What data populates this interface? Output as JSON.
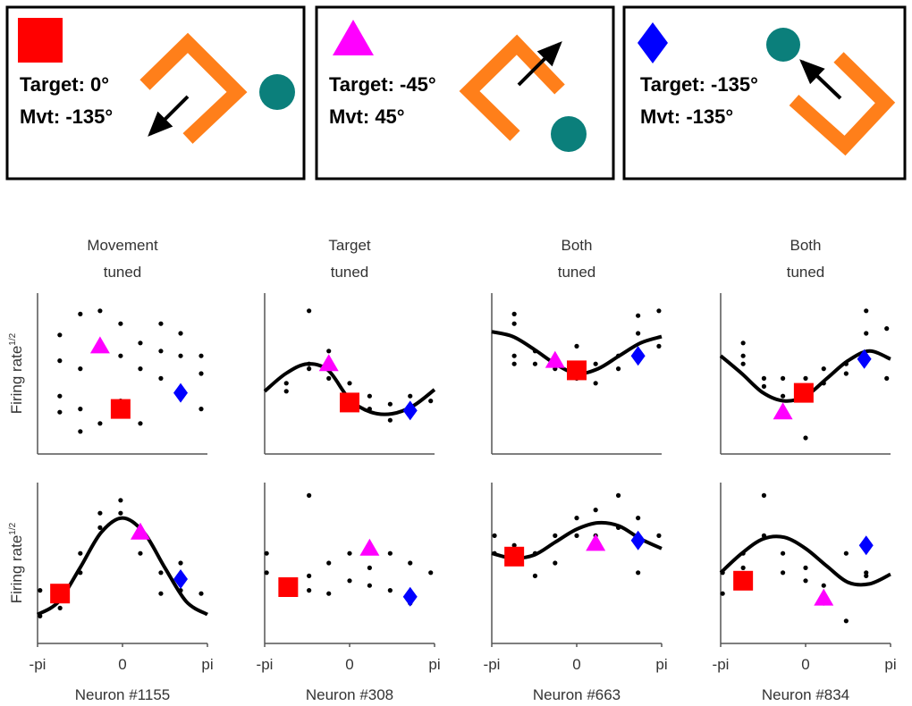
{
  "panels": [
    {
      "lines": [
        "Target: 0°",
        "Mvt: -135°"
      ]
    },
    {
      "lines": [
        "Target: -45°",
        "Mvt: 45°"
      ]
    },
    {
      "lines": [
        "Target: -135°",
        "Mvt: -135°"
      ]
    }
  ],
  "chart_data": [
    {
      "type": "scatter",
      "title": [
        "Movement",
        "tuned"
      ],
      "y_label": "Firing rate",
      "y_label_sup": "1/2",
      "xlim": [
        -3.14159,
        3.14159
      ],
      "ylim": [
        0,
        10
      ],
      "dots": {
        "color": "#000000",
        "x": [
          -2.32,
          -2.32,
          -2.32,
          -2.32,
          -1.56,
          -1.56,
          -1.56,
          -1.56,
          -0.83,
          -0.83,
          -0.83,
          -0.07,
          -0.07,
          -0.07,
          0.66,
          0.66,
          0.66,
          1.42,
          1.42,
          1.42,
          2.15,
          2.15,
          2.91,
          2.91,
          2.91
        ],
        "y": [
          7.4,
          5.8,
          3.6,
          2.6,
          8.7,
          5.3,
          2.8,
          1.4,
          8.9,
          6.7,
          1.9,
          8.1,
          6.1,
          3.3,
          6.9,
          5.3,
          1.9,
          8.1,
          6.4,
          4.7,
          7.5,
          6.1,
          6.1,
          5.0,
          2.8
        ]
      },
      "markers": [
        {
          "shape": "triangle",
          "color": "#ff00ff",
          "x": -0.83,
          "y": 6.7
        },
        {
          "shape": "square",
          "color": "#ff0000",
          "x": -0.07,
          "y": 2.8
        },
        {
          "shape": "diamond",
          "color": "#0000ff",
          "x": 2.15,
          "y": 3.8
        }
      ]
    },
    {
      "type": "scatter",
      "title": [
        "Target",
        "tuned"
      ],
      "xlim": [
        -3.14159,
        3.14159
      ],
      "ylim": [
        0,
        10
      ],
      "dots": {
        "color": "#000000",
        "x": [
          -2.34,
          -2.34,
          -1.5,
          -1.5,
          -1.5,
          -0.77,
          -0.77,
          0,
          0,
          0.74,
          0.74,
          1.5,
          1.5,
          2.24,
          2.24,
          3.0
        ],
        "y": [
          4.4,
          3.9,
          8.9,
          5.6,
          5.3,
          6.4,
          4.7,
          4.4,
          3.6,
          3.6,
          2.8,
          3.1,
          2.1,
          3.6,
          2.5,
          3.3
        ]
      },
      "curve": {
        "color": "#000000",
        "x": [
          -3.14,
          -2.36,
          -1.57,
          -0.79,
          0,
          0.79,
          1.57,
          2.36,
          3.14
        ],
        "y": [
          3.9,
          5.0,
          5.6,
          5.2,
          3.4,
          2.6,
          2.5,
          3.0,
          4.0
        ]
      },
      "markers": [
        {
          "shape": "triangle",
          "color": "#ff00ff",
          "x": -0.77,
          "y": 5.6
        },
        {
          "shape": "square",
          "color": "#ff0000",
          "x": 0,
          "y": 3.2
        },
        {
          "shape": "diamond",
          "color": "#0000ff",
          "x": 2.24,
          "y": 2.7
        }
      ]
    },
    {
      "type": "scatter",
      "title": [
        "Both",
        "tuned"
      ],
      "xlim": [
        -3.14159,
        3.14159
      ],
      "ylim": [
        0,
        10
      ],
      "dots": {
        "color": "#000000",
        "x": [
          -2.31,
          -2.31,
          -2.31,
          -2.31,
          -1.54,
          -1.54,
          -0.8,
          -0.8,
          0,
          0,
          0.7,
          0.7,
          1.54,
          1.54,
          2.27,
          2.27,
          3.04,
          3.04
        ],
        "y": [
          8.7,
          8.1,
          6.1,
          5.6,
          6.4,
          5.6,
          6.1,
          5.3,
          6.7,
          4.7,
          5.6,
          4.4,
          6.1,
          5.3,
          8.6,
          7.5,
          8.9,
          6.7
        ]
      },
      "curve": {
        "color": "#000000",
        "x": [
          -3.14,
          -2.36,
          -1.57,
          -0.79,
          0,
          0.79,
          1.57,
          2.36,
          3.14
        ],
        "y": [
          7.6,
          7.3,
          6.5,
          5.6,
          5.0,
          5.3,
          6.1,
          6.9,
          7.3
        ]
      },
      "markers": [
        {
          "shape": "triangle",
          "color": "#ff00ff",
          "x": -0.8,
          "y": 5.8
        },
        {
          "shape": "square",
          "color": "#ff0000",
          "x": 0,
          "y": 5.2
        },
        {
          "shape": "diamond",
          "color": "#0000ff",
          "x": 2.27,
          "y": 6.1
        }
      ]
    },
    {
      "type": "scatter",
      "title": [
        "Both",
        "tuned"
      ],
      "xlim": [
        -3.14159,
        3.14159
      ],
      "ylim": [
        0,
        10
      ],
      "dots": {
        "color": "#000000",
        "x": [
          -2.31,
          -2.31,
          -2.31,
          -1.54,
          -1.54,
          -0.84,
          -0.84,
          0,
          0,
          0.67,
          0.67,
          1.5,
          1.5,
          2.24,
          2.24,
          3.0,
          3.0
        ],
        "y": [
          6.9,
          6.1,
          5.6,
          4.7,
          4.2,
          4.7,
          3.6,
          4.7,
          1.0,
          5.3,
          4.4,
          5.6,
          5.0,
          8.9,
          7.5,
          7.8,
          4.7
        ]
      },
      "curve": {
        "color": "#000000",
        "x": [
          -3.14,
          -2.36,
          -1.57,
          -0.79,
          0,
          0.79,
          1.57,
          2.36,
          3.14
        ],
        "y": [
          6.1,
          5.0,
          3.8,
          3.3,
          3.6,
          4.7,
          5.8,
          6.4,
          5.9
        ]
      },
      "markers": [
        {
          "shape": "triangle",
          "color": "#ff00ff",
          "x": -0.84,
          "y": 2.6
        },
        {
          "shape": "square",
          "color": "#ff0000",
          "x": -0.07,
          "y": 3.8
        },
        {
          "shape": "diamond",
          "color": "#0000ff",
          "x": 2.17,
          "y": 5.9
        }
      ]
    },
    {
      "type": "scatter",
      "x_label": "Neuron #1155",
      "y_label": "Firing rate",
      "y_label_sup": "1/2",
      "xlim": [
        -3.14159,
        3.14159
      ],
      "ylim": [
        0,
        10
      ],
      "xticks": [
        {
          "value": -3.14159,
          "label": "-pi"
        },
        0,
        {
          "value": 3.14159,
          "label": "pi"
        }
      ],
      "dots": {
        "color": "#000000",
        "x": [
          -3.05,
          -3.05,
          -2.31,
          -2.31,
          -1.56,
          -1.56,
          -0.83,
          -0.83,
          -0.07,
          -0.07,
          0.66,
          0.66,
          1.42,
          1.42,
          2.15,
          2.15,
          2.91
        ],
        "y": [
          3.3,
          1.7,
          3.3,
          2.2,
          5.6,
          4.4,
          8.1,
          7.2,
          8.9,
          8.1,
          7.2,
          5.6,
          4.4,
          3.1,
          5.0,
          3.3,
          3.1
        ]
      },
      "curve": {
        "color": "#000000",
        "x": [
          -3.14,
          -2.36,
          -1.57,
          -0.79,
          0,
          0.79,
          1.57,
          2.36,
          3.14
        ],
        "y": [
          1.8,
          2.6,
          4.7,
          6.9,
          7.8,
          6.9,
          4.7,
          2.6,
          1.8
        ]
      },
      "markers": [
        {
          "shape": "square",
          "color": "#ff0000",
          "x": -2.31,
          "y": 3.1
        },
        {
          "shape": "triangle",
          "color": "#ff00ff",
          "x": 0.66,
          "y": 6.9
        },
        {
          "shape": "diamond",
          "color": "#0000ff",
          "x": 2.15,
          "y": 4.0
        }
      ]
    },
    {
      "type": "scatter",
      "x_label": "Neuron #308",
      "xlim": [
        -3.14159,
        3.14159
      ],
      "ylim": [
        0,
        10
      ],
      "xticks": [
        {
          "value": -3.14159,
          "label": "-pi"
        },
        0,
        {
          "value": 3.14159,
          "label": "pi"
        }
      ],
      "dots": {
        "color": "#000000",
        "x": [
          -3.07,
          -3.07,
          -2.34,
          -1.5,
          -1.5,
          -1.5,
          -0.77,
          -0.77,
          0,
          0,
          0.74,
          0.74,
          1.5,
          1.5,
          2.24,
          2.24,
          3.0
        ],
        "y": [
          5.6,
          4.4,
          3.1,
          9.2,
          4.2,
          3.3,
          5.0,
          3.1,
          5.6,
          3.9,
          4.7,
          3.6,
          5.6,
          3.3,
          5.0,
          2.5,
          4.4
        ]
      },
      "markers": [
        {
          "shape": "square",
          "color": "#ff0000",
          "x": -2.27,
          "y": 3.5
        },
        {
          "shape": "triangle",
          "color": "#ff00ff",
          "x": 0.74,
          "y": 5.9
        },
        {
          "shape": "diamond",
          "color": "#0000ff",
          "x": 2.24,
          "y": 2.9
        }
      ]
    },
    {
      "type": "scatter",
      "x_label": "Neuron #663",
      "xlim": [
        -3.14159,
        3.14159
      ],
      "ylim": [
        0,
        10
      ],
      "xticks": [
        {
          "value": -3.14159,
          "label": "-pi"
        },
        0,
        {
          "value": 3.14159,
          "label": "pi"
        }
      ],
      "dots": {
        "color": "#000000",
        "x": [
          -3.04,
          -3.04,
          -2.31,
          -1.54,
          -1.54,
          -0.8,
          -0.8,
          0,
          0,
          0.7,
          0.7,
          1.54,
          1.54,
          2.27,
          2.27,
          3.04
        ],
        "y": [
          6.7,
          5.6,
          6.1,
          5.6,
          4.2,
          6.7,
          5.0,
          7.8,
          6.7,
          8.3,
          6.7,
          9.2,
          7.2,
          7.8,
          4.4,
          6.7
        ]
      },
      "curve": {
        "color": "#000000",
        "x": [
          -3.14,
          -2.36,
          -1.57,
          -0.79,
          0,
          0.79,
          1.57,
          2.36,
          3.14
        ],
        "y": [
          5.6,
          5.3,
          5.5,
          6.3,
          7.1,
          7.5,
          7.3,
          6.5,
          5.9
        ]
      },
      "markers": [
        {
          "shape": "square",
          "color": "#ff0000",
          "x": -2.31,
          "y": 5.4
        },
        {
          "shape": "triangle",
          "color": "#ff00ff",
          "x": 0.7,
          "y": 6.2
        },
        {
          "shape": "diamond",
          "color": "#0000ff",
          "x": 2.27,
          "y": 6.4
        }
      ]
    },
    {
      "type": "scatter",
      "x_label": "Neuron #834",
      "xlim": [
        -3.14159,
        3.14159
      ],
      "ylim": [
        0,
        10
      ],
      "xticks": [
        {
          "value": -3.14159,
          "label": "-pi"
        },
        0,
        {
          "value": 3.14159,
          "label": "pi"
        }
      ],
      "dots": {
        "color": "#000000",
        "x": [
          -3.07,
          -3.07,
          -2.31,
          -2.31,
          -1.54,
          -1.54,
          -0.84,
          -0.84,
          0,
          0,
          0.67,
          0.67,
          1.5,
          1.5,
          2.24,
          2.24
        ],
        "y": [
          4.4,
          3.1,
          5.6,
          4.7,
          9.2,
          6.7,
          5.6,
          4.4,
          4.7,
          3.9,
          3.6,
          2.5,
          1.4,
          5.6,
          4.4,
          4.2
        ]
      },
      "curve": {
        "color": "#000000",
        "x": [
          -3.14,
          -2.36,
          -1.57,
          -0.79,
          0,
          0.79,
          1.57,
          2.36,
          3.14
        ],
        "y": [
          4.4,
          5.6,
          6.5,
          6.6,
          5.9,
          4.8,
          3.8,
          3.7,
          4.3
        ]
      },
      "markers": [
        {
          "shape": "square",
          "color": "#ff0000",
          "x": -2.31,
          "y": 3.9
        },
        {
          "shape": "triangle",
          "color": "#ff00ff",
          "x": 0.67,
          "y": 2.8
        },
        {
          "shape": "diamond",
          "color": "#0000ff",
          "x": 2.24,
          "y": 6.1
        }
      ]
    }
  ]
}
